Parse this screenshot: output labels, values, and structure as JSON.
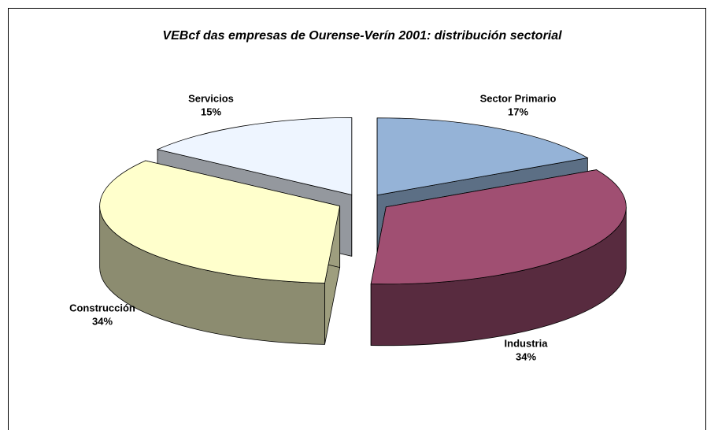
{
  "chart_data": {
    "type": "pie",
    "title": "VEBcf  das empresas de  Ourense-Verín 2001: distribución sectorial",
    "categories": [
      "Sector Primario",
      "Industria",
      "Construcción",
      "Servicios"
    ],
    "values": [
      17,
      34,
      34,
      15
    ],
    "value_labels": [
      "17%",
      "34%",
      "34%",
      "15%"
    ],
    "colors": [
      "#95b3d7",
      "#a04f72",
      "#ffffcc",
      "#eef5ff"
    ]
  }
}
